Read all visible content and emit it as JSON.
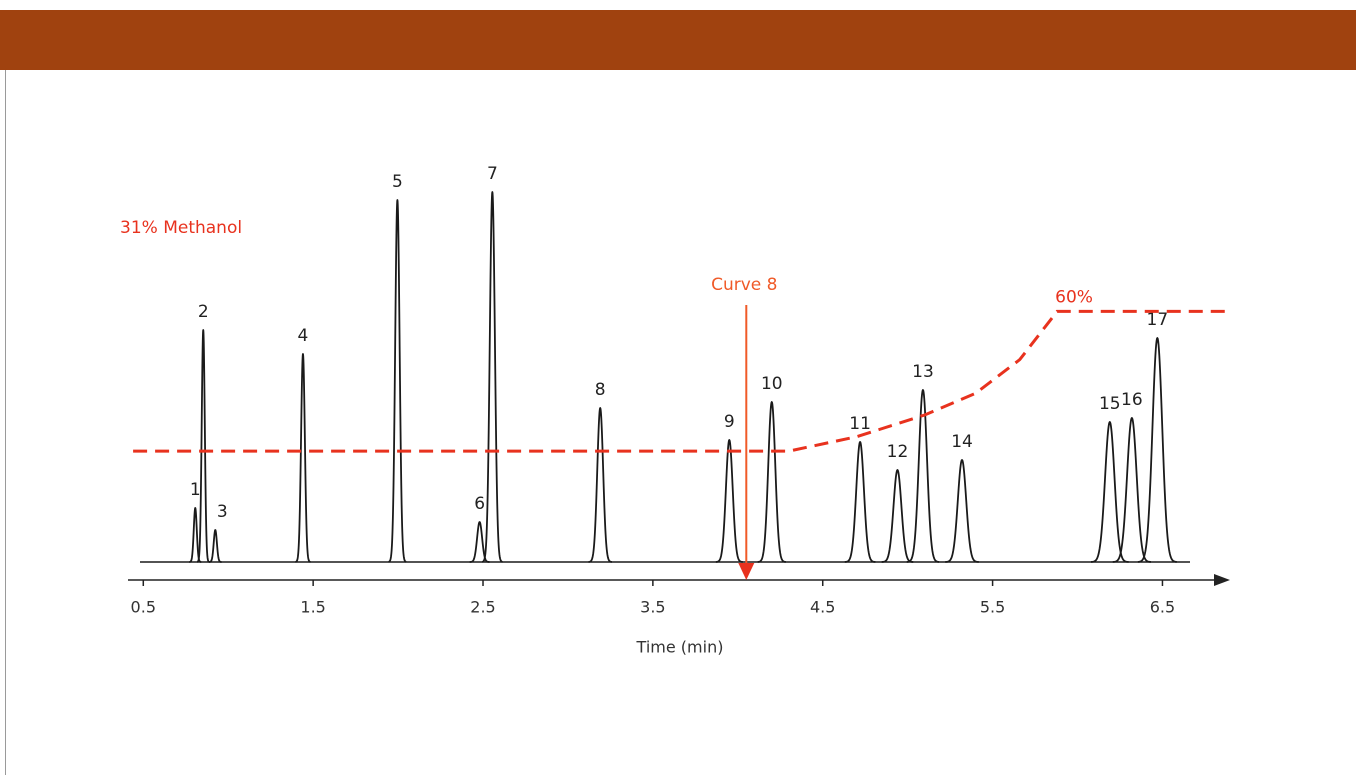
{
  "chart_data": {
    "type": "chromatogram",
    "x_label": "Time (min)",
    "xlim": [
      0.41,
      6.88
    ],
    "xticks": [
      0.5,
      1.5,
      2.5,
      3.5,
      4.5,
      5.5,
      6.5
    ],
    "ylim": [
      0,
      100
    ],
    "y2lim": [
      8,
      91
    ],
    "categories": [
      "1",
      "2",
      "3",
      "4",
      "5",
      "6",
      "7",
      "8",
      "9",
      "10",
      "11",
      "12",
      "13",
      "14",
      "15",
      "16",
      "17"
    ],
    "x": [
      0.806,
      0.853,
      0.924,
      1.44,
      1.996,
      2.48,
      2.555,
      3.19,
      3.95,
      4.2,
      4.72,
      4.94,
      5.09,
      5.32,
      6.19,
      6.32,
      6.47
    ],
    "values": [
      13.5,
      58,
      8,
      52,
      90.5,
      10,
      92.5,
      38.5,
      30.5,
      40,
      30,
      23,
      43,
      25.5,
      35,
      36,
      56
    ],
    "color": "#1a1a1a",
    "gradient": {
      "axis": "y2",
      "color": "#e8321e",
      "start_label": "31% Methanol",
      "end_label": "60%",
      "x": [
        0.44,
        4.3,
        4.7,
        5.1,
        5.4,
        5.66,
        5.88,
        6.87
      ],
      "values": [
        31,
        31,
        34,
        38.5,
        43,
        50,
        60,
        60
      ]
    },
    "annotation": {
      "text": "Curve 8",
      "x": 4.05,
      "color": "#f05a28"
    }
  }
}
